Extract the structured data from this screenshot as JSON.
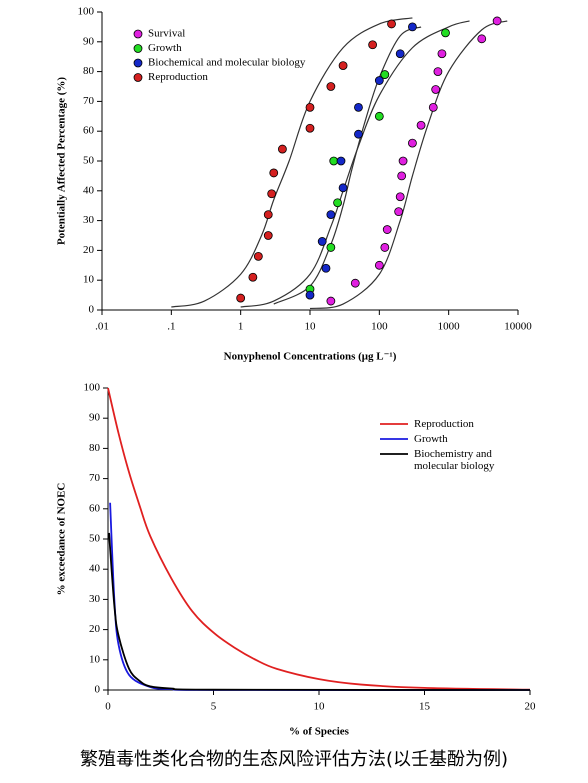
{
  "chart_data": [
    {
      "type": "scatter",
      "xlog": true,
      "x_label": "Nonyphenol Concentrations (μg L⁻¹)",
      "y_label": "Potentially Affected Percentage (%)",
      "xlim": [
        0.01,
        10000
      ],
      "xticks": [
        {
          "value": 0.01,
          "label": ".01"
        },
        {
          "value": 0.1,
          "label": ".1"
        },
        1,
        10,
        100,
        1000,
        10000
      ],
      "ylim": [
        0,
        100
      ],
      "yticks": [
        0,
        10,
        20,
        30,
        40,
        50,
        60,
        70,
        80,
        90,
        100
      ],
      "legend": "upper left",
      "fit_color": "#333333",
      "series": [
        {
          "name": "Survival",
          "color": "#e020e0",
          "x": [
            20,
            45,
            100,
            120,
            130,
            190,
            200,
            210,
            220,
            300,
            400,
            600,
            650,
            700,
            800,
            3000,
            5000
          ],
          "values": [
            3,
            9,
            15,
            21,
            27,
            33,
            38,
            45,
            50,
            56,
            62,
            68,
            74,
            80,
            86,
            91,
            97
          ],
          "fit": {
            "x": [
              10,
              30,
              100,
              200,
              300,
              500,
              1000,
              3000,
              7000
            ],
            "y": [
              0.5,
              2,
              12,
              30,
              45,
              62,
              80,
              94,
              97
            ]
          }
        },
        {
          "name": "Growth",
          "color": "#22dd22",
          "x": [
            10,
            20,
            25,
            22,
            100,
            120,
            900
          ],
          "values": [
            7,
            21,
            36,
            50,
            65,
            79,
            93
          ],
          "fit": {
            "x": [
              1,
              3,
              10,
              20,
              30,
              50,
              100,
              300,
              1000,
              2000
            ],
            "y": [
              1,
              3,
              12,
              28,
              40,
              55,
              72,
              88,
              95,
              97
            ]
          }
        },
        {
          "name": "Biochemical and molecular biology",
          "color": "#1428c8",
          "x": [
            10,
            17,
            15,
            20,
            30,
            28,
            50,
            50,
            100,
            200,
            300
          ],
          "values": [
            5,
            14,
            23,
            32,
            41,
            50,
            59,
            68,
            77,
            86,
            95
          ],
          "fit": {
            "x": [
              3,
              10,
              20,
              30,
              40,
              60,
              100,
              200,
              400
            ],
            "y": [
              2,
              8,
              22,
              35,
              47,
              62,
              78,
              92,
              95
            ]
          }
        },
        {
          "name": "Reproduction",
          "color": "#d42020",
          "x": [
            1,
            1.5,
            1.8,
            2.5,
            2.5,
            2.8,
            3,
            4,
            10,
            10,
            20,
            30,
            80,
            150
          ],
          "values": [
            4,
            11,
            18,
            25,
            32,
            39,
            46,
            54,
            61,
            68,
            75,
            82,
            89,
            96
          ],
          "fit": {
            "x": [
              0.1,
              0.3,
              1,
              2,
              3,
              5,
              10,
              30,
              100,
              300
            ],
            "y": [
              1,
              3,
              12,
              25,
              37,
              50,
              70,
              88,
              96,
              98
            ]
          }
        }
      ]
    },
    {
      "type": "line",
      "x_label": "% of Species",
      "y_label": "% exceedance of NOEC",
      "xlim": [
        0,
        20
      ],
      "xticks": [
        0,
        5,
        10,
        15,
        20
      ],
      "ylim": [
        0,
        100
      ],
      "yticks": [
        0,
        10,
        20,
        30,
        40,
        50,
        60,
        70,
        80,
        90,
        100
      ],
      "legend": "upper right",
      "series": [
        {
          "name": "Reproduction",
          "color": "#e02020",
          "x": [
            0,
            0.5,
            1,
            1.5,
            2,
            3,
            4,
            5,
            6,
            7,
            8,
            10,
            12,
            15,
            20
          ],
          "values": [
            100,
            85,
            72,
            61,
            51,
            37,
            26,
            19,
            14,
            10,
            7,
            3.6,
            1.8,
            0.7,
            0.1
          ]
        },
        {
          "name": "Growth",
          "color": "#1a1ae0",
          "x": [
            0.1,
            0.3,
            0.5,
            1,
            2,
            3,
            5,
            20
          ],
          "values": [
            62,
            30,
            15,
            5,
            1,
            0.3,
            0,
            0
          ]
        },
        {
          "name": "Biochemistry and molecular biology",
          "color": "#000000",
          "x": [
            0.05,
            0.3,
            0.5,
            1,
            1.5,
            2,
            3,
            5,
            20
          ],
          "values": [
            52,
            28,
            18,
            7,
            3,
            1.2,
            0.5,
            0.1,
            0
          ]
        }
      ]
    }
  ],
  "caption": "繁殖毒性类化合物的生态风险评估方法(以壬基酚为例)"
}
